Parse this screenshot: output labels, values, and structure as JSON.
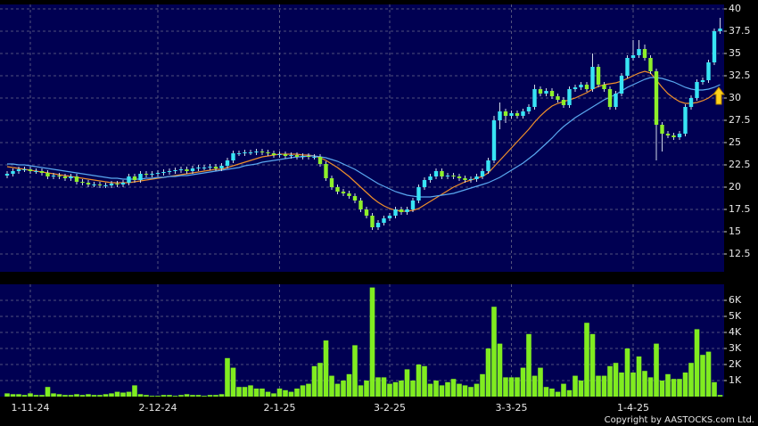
{
  "chart_data": [
    {
      "type": "candlestick",
      "categories": [
        null,
        null,
        null,
        null,
        "1-11-24",
        null,
        null,
        null,
        null,
        null,
        null,
        null,
        null,
        null,
        null,
        null,
        null,
        null,
        null,
        null,
        null,
        null,
        null,
        null,
        null,
        null,
        "2-12-24",
        null,
        null,
        null,
        null,
        null,
        null,
        null,
        null,
        null,
        null,
        null,
        null,
        null,
        null,
        null,
        null,
        null,
        null,
        null,
        null,
        "2-1-25",
        null,
        null,
        null,
        null,
        null,
        null,
        null,
        null,
        null,
        null,
        null,
        null,
        null,
        null,
        null,
        null,
        null,
        null,
        "3-2-25",
        null,
        null,
        null,
        null,
        null,
        null,
        null,
        null,
        null,
        null,
        null,
        null,
        null,
        null,
        null,
        null,
        null,
        null,
        null,
        null,
        "3-3-25",
        null,
        null,
        null,
        null,
        null,
        null,
        null,
        null,
        null,
        null,
        null,
        null,
        null,
        null,
        null,
        null,
        null,
        null,
        null,
        null,
        "1-4-25",
        null,
        null,
        null,
        null,
        null,
        null,
        null,
        null,
        null,
        null,
        null,
        null,
        null,
        null,
        null
      ],
      "open": [
        21.3,
        21.5,
        21.8,
        22.0,
        22.0,
        21.8,
        21.8,
        21.6,
        21.2,
        21.3,
        21.2,
        21.0,
        21.2,
        20.6,
        20.5,
        20.3,
        20.3,
        20.2,
        20.2,
        20.4,
        20.3,
        20.5,
        21.2,
        20.8,
        21.5,
        21.4,
        21.5,
        21.6,
        21.7,
        21.8,
        21.9,
        22.0,
        21.8,
        22.1,
        22.2,
        22.2,
        22.3,
        22.1,
        22.4,
        23.0,
        23.8,
        23.8,
        23.9,
        23.9,
        24.0,
        23.9,
        23.8,
        23.6,
        23.7,
        23.5,
        23.6,
        23.4,
        23.5,
        23.4,
        23.4,
        22.6,
        21.0,
        20.0,
        19.5,
        19.3,
        19.0,
        18.5,
        17.5,
        16.8,
        15.5,
        16.0,
        16.5,
        16.8,
        17.5,
        17.2,
        17.5,
        18.5,
        20.0,
        20.8,
        21.2,
        21.8,
        21.2,
        21.3,
        21.2,
        21.0,
        20.8,
        20.9,
        21.2,
        21.8,
        23.0,
        27.5,
        28.5,
        28.0,
        28.3,
        28.0,
        28.5,
        29.0,
        31.0,
        30.5,
        30.8,
        30.2,
        29.8,
        29.2,
        31.0,
        31.2,
        31.5,
        31.0,
        33.5,
        31.5,
        31.0,
        29.0,
        30.5,
        32.5,
        34.5,
        34.8,
        35.5,
        34.5,
        33.0,
        27.0,
        26.0,
        25.8,
        25.6,
        26.0,
        29.0,
        30.0,
        31.8,
        32.0,
        34.0,
        37.5
      ],
      "high": [
        21.8,
        22.1,
        22.3,
        22.3,
        22.3,
        22.1,
        22.1,
        21.9,
        21.6,
        21.6,
        21.5,
        21.5,
        21.5,
        20.9,
        20.8,
        20.6,
        20.6,
        20.5,
        20.7,
        20.7,
        20.8,
        21.5,
        21.5,
        21.8,
        21.8,
        21.8,
        21.9,
        22.0,
        22.1,
        22.2,
        22.3,
        22.3,
        22.4,
        22.5,
        22.5,
        22.6,
        22.6,
        22.7,
        23.3,
        24.1,
        24.1,
        24.2,
        24.2,
        24.3,
        24.3,
        24.2,
        24.1,
        24.0,
        24.0,
        23.9,
        23.9,
        23.8,
        23.8,
        23.7,
        23.7,
        22.9,
        21.3,
        20.3,
        19.8,
        19.6,
        19.3,
        18.8,
        17.8,
        17.1,
        16.3,
        16.8,
        17.1,
        17.8,
        17.8,
        17.8,
        18.8,
        20.3,
        21.1,
        21.5,
        22.1,
        22.1,
        21.6,
        21.6,
        21.5,
        21.3,
        21.2,
        21.5,
        22.1,
        23.3,
        28.0,
        29.5,
        28.8,
        28.6,
        28.6,
        28.8,
        29.3,
        31.5,
        31.3,
        31.1,
        31.1,
        30.5,
        30.1,
        31.3,
        31.5,
        31.8,
        31.8,
        35.0,
        33.8,
        31.8,
        31.3,
        30.8,
        32.8,
        34.8,
        36.5,
        36.5,
        36.0,
        34.8,
        33.3,
        27.3,
        26.3,
        26.1,
        26.3,
        29.3,
        30.3,
        32.1,
        32.3,
        34.3,
        37.8,
        39.0
      ],
      "low": [
        21.0,
        21.2,
        21.5,
        21.7,
        21.5,
        21.5,
        21.3,
        20.9,
        20.9,
        20.9,
        20.7,
        20.7,
        20.3,
        20.2,
        20.0,
        20.0,
        19.9,
        19.9,
        19.9,
        20.0,
        20.0,
        20.2,
        20.5,
        20.5,
        21.1,
        21.1,
        21.2,
        21.3,
        21.4,
        21.5,
        21.6,
        21.5,
        21.5,
        21.8,
        21.9,
        21.9,
        21.8,
        21.8,
        22.1,
        22.7,
        23.5,
        23.5,
        23.6,
        23.6,
        23.6,
        23.5,
        23.3,
        23.3,
        23.2,
        23.2,
        23.1,
        23.1,
        23.1,
        23.1,
        22.3,
        20.7,
        19.7,
        19.2,
        19.0,
        18.7,
        18.2,
        17.2,
        16.5,
        15.2,
        15.2,
        15.7,
        16.2,
        16.5,
        16.9,
        16.9,
        17.2,
        18.2,
        19.7,
        20.5,
        20.9,
        20.9,
        20.9,
        20.9,
        20.7,
        20.5,
        20.5,
        20.6,
        20.9,
        21.5,
        22.7,
        26.5,
        27.2,
        27.7,
        27.7,
        27.7,
        28.2,
        28.7,
        30.2,
        30.2,
        29.9,
        29.5,
        28.9,
        28.9,
        30.7,
        30.9,
        30.7,
        30.7,
        31.2,
        30.7,
        28.7,
        28.7,
        30.2,
        32.2,
        34.2,
        34.5,
        34.2,
        32.7,
        23.0,
        24.0,
        25.5,
        25.3,
        25.3,
        25.7,
        28.7,
        29.7,
        31.5,
        31.7,
        33.7,
        37.2
      ],
      "close": [
        21.5,
        21.8,
        22.0,
        22.0,
        21.8,
        21.8,
        21.6,
        21.2,
        21.3,
        21.2,
        21.0,
        21.2,
        20.6,
        20.5,
        20.3,
        20.3,
        20.2,
        20.2,
        20.4,
        20.3,
        20.5,
        21.2,
        20.8,
        21.5,
        21.4,
        21.5,
        21.6,
        21.7,
        21.8,
        21.9,
        22.0,
        21.8,
        22.1,
        22.2,
        22.2,
        22.3,
        22.1,
        22.4,
        23.0,
        23.8,
        23.8,
        23.9,
        23.9,
        24.0,
        23.9,
        23.8,
        23.6,
        23.7,
        23.5,
        23.6,
        23.4,
        23.5,
        23.4,
        23.4,
        22.6,
        21.0,
        20.0,
        19.5,
        19.3,
        19.0,
        18.5,
        17.5,
        16.8,
        15.5,
        16.0,
        16.5,
        16.8,
        17.5,
        17.2,
        17.5,
        18.5,
        20.0,
        20.8,
        21.2,
        21.8,
        21.2,
        21.3,
        21.2,
        21.0,
        20.8,
        20.9,
        21.2,
        21.8,
        23.0,
        27.5,
        28.5,
        28.0,
        28.3,
        28.0,
        28.5,
        29.0,
        31.0,
        30.5,
        30.8,
        30.2,
        29.8,
        29.2,
        31.0,
        31.2,
        31.5,
        31.0,
        33.5,
        31.5,
        31.0,
        29.0,
        30.5,
        32.5,
        34.5,
        34.8,
        35.5,
        34.5,
        33.0,
        27.0,
        26.0,
        25.8,
        25.6,
        26.0,
        29.0,
        30.0,
        31.8,
        32.0,
        34.0,
        37.5,
        37.8
      ],
      "up_color": "#38e4f4",
      "down_color": "#8ef02a",
      "lines": [
        {
          "color": "#f0902a",
          "values": [
            22.3,
            22.2,
            22.1,
            22.0,
            21.9,
            21.8,
            21.7,
            21.6,
            21.5,
            21.4,
            21.3,
            21.2,
            21.1,
            21.0,
            20.9,
            20.8,
            20.7,
            20.6,
            20.5,
            20.5,
            20.5,
            20.5,
            20.6,
            20.7,
            20.8,
            20.9,
            21.0,
            21.1,
            21.2,
            21.3,
            21.4,
            21.5,
            21.6,
            21.7,
            21.8,
            21.9,
            22.0,
            22.0,
            22.2,
            22.4,
            22.6,
            22.8,
            23.0,
            23.2,
            23.4,
            23.5,
            23.6,
            23.7,
            23.7,
            23.7,
            23.7,
            23.6,
            23.6,
            23.5,
            23.3,
            23.0,
            22.6,
            22.2,
            21.7,
            21.2,
            20.6,
            20.0,
            19.4,
            18.8,
            18.3,
            17.9,
            17.6,
            17.4,
            17.3,
            17.3,
            17.4,
            17.6,
            18.0,
            18.4,
            18.8,
            19.2,
            19.6,
            20.0,
            20.3,
            20.6,
            20.8,
            21.0,
            21.2,
            21.6,
            22.3,
            23.0,
            23.7,
            24.4,
            25.1,
            25.8,
            26.5,
            27.3,
            28.0,
            28.6,
            29.1,
            29.4,
            29.6,
            29.8,
            30.0,
            30.3,
            30.6,
            31.0,
            31.3,
            31.5,
            31.6,
            31.7,
            31.9,
            32.2,
            32.5,
            32.8,
            33.0,
            32.8,
            32.0,
            31.2,
            30.5,
            30.0,
            29.6,
            29.4,
            29.4,
            29.5,
            29.7,
            30.0,
            30.5,
            31.0
          ]
        },
        {
          "color": "#5aa8f0",
          "values": [
            22.6,
            22.6,
            22.5,
            22.5,
            22.4,
            22.3,
            22.2,
            22.1,
            22.0,
            21.9,
            21.8,
            21.7,
            21.6,
            21.5,
            21.4,
            21.3,
            21.2,
            21.1,
            21.0,
            21.0,
            20.9,
            20.9,
            20.9,
            20.9,
            21.0,
            21.0,
            21.1,
            21.1,
            21.2,
            21.2,
            21.3,
            21.3,
            21.4,
            21.5,
            21.6,
            21.7,
            21.8,
            21.9,
            22.0,
            22.1,
            22.2,
            22.4,
            22.5,
            22.6,
            22.8,
            22.9,
            23.0,
            23.1,
            23.2,
            23.3,
            23.4,
            23.4,
            23.5,
            23.5,
            23.4,
            23.3,
            23.1,
            22.9,
            22.6,
            22.3,
            22.0,
            21.6,
            21.2,
            20.8,
            20.4,
            20.1,
            19.8,
            19.5,
            19.3,
            19.1,
            19.0,
            18.9,
            18.9,
            18.9,
            19.0,
            19.1,
            19.2,
            19.3,
            19.5,
            19.7,
            19.9,
            20.1,
            20.3,
            20.5,
            20.8,
            21.1,
            21.5,
            21.9,
            22.3,
            22.7,
            23.2,
            23.7,
            24.3,
            24.9,
            25.5,
            26.2,
            26.8,
            27.3,
            27.8,
            28.2,
            28.6,
            29.0,
            29.4,
            29.8,
            30.1,
            30.4,
            30.8,
            31.2,
            31.5,
            31.8,
            32.1,
            32.3,
            32.3,
            32.2,
            32.0,
            31.8,
            31.5,
            31.2,
            31.0,
            30.9,
            30.9,
            31.0,
            31.2,
            31.5
          ]
        }
      ],
      "ylim": [
        10.5,
        40.5
      ],
      "yticks": [
        12.5,
        15,
        17.5,
        20,
        22.5,
        25,
        27.5,
        30,
        32.5,
        35,
        37.5,
        40
      ],
      "grid": true
    },
    {
      "type": "bar",
      "values": [
        200,
        150,
        150,
        100,
        200,
        100,
        100,
        600,
        200,
        150,
        100,
        100,
        150,
        100,
        150,
        100,
        100,
        150,
        200,
        300,
        250,
        300,
        700,
        150,
        100,
        50,
        50,
        100,
        100,
        50,
        100,
        150,
        100,
        100,
        50,
        100,
        100,
        150,
        2400,
        1800,
        600,
        600,
        700,
        500,
        500,
        300,
        200,
        500,
        400,
        300,
        500,
        700,
        800,
        1900,
        2100,
        3500,
        1300,
        800,
        1000,
        1400,
        3200,
        700,
        1000,
        6800,
        1200,
        1200,
        800,
        900,
        1000,
        1700,
        1000,
        2000,
        1900,
        800,
        1000,
        700,
        900,
        1100,
        800,
        700,
        600,
        800,
        1400,
        3000,
        5600,
        3300,
        1200,
        1200,
        1200,
        1800,
        3900,
        1300,
        1800,
        600,
        500,
        300,
        800,
        400,
        1300,
        1000,
        4600,
        3900,
        1300,
        1300,
        1900,
        2100,
        1500,
        3000,
        1500,
        2500,
        1600,
        1200,
        3300,
        1000,
        1400,
        1100,
        1100,
        1500,
        2100,
        4200,
        2600,
        2800,
        900,
        100
      ],
      "color": "#80ec20",
      "ylim": [
        0,
        7000
      ],
      "yticks": [
        {
          "value": 1000,
          "label": "1K"
        },
        {
          "value": 2000,
          "label": "2K"
        },
        {
          "value": 3000,
          "label": "3K"
        },
        {
          "value": 4000,
          "label": "4K"
        },
        {
          "value": 5000,
          "label": "5K"
        },
        {
          "value": 6000,
          "label": "6K"
        }
      ],
      "grid": true
    }
  ],
  "footer": "Copyright by AASTOCKS.com Ltd."
}
